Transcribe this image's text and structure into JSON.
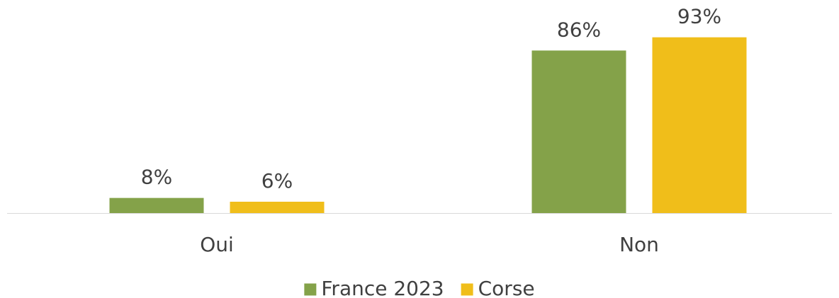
{
  "chart_data": {
    "type": "bar",
    "categories": [
      "Oui",
      "Non"
    ],
    "series": [
      {
        "name": "France 2023",
        "color": "#84a249",
        "values": [
          8,
          86
        ],
        "value_labels": [
          "8%",
          "86%"
        ]
      },
      {
        "name": "Corse",
        "color": "#f0be1a",
        "values": [
          6,
          93
        ],
        "value_labels": [
          "6%",
          "93%"
        ]
      }
    ],
    "ylim": [
      0,
      100
    ],
    "grid": false,
    "legend": "bottom"
  }
}
